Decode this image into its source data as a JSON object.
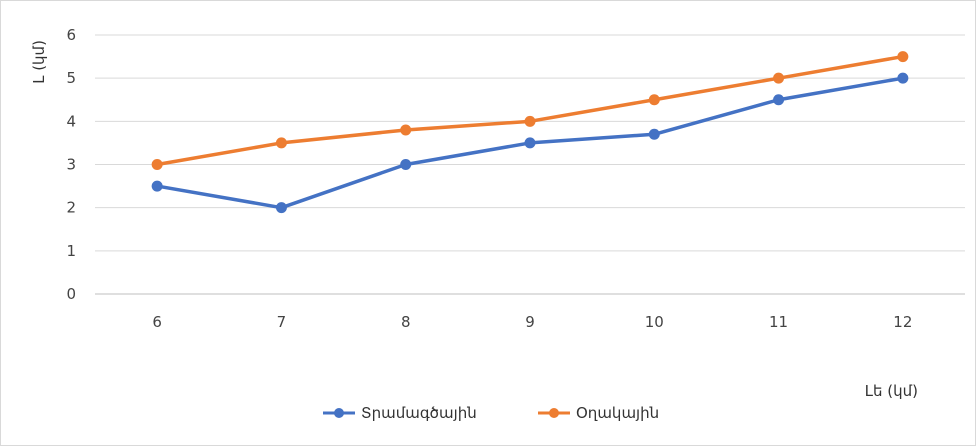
{
  "chart_data": {
    "type": "line",
    "title": "",
    "xlabel": "Lե (կմ)",
    "ylabel": "L (կմ)",
    "x": [
      6,
      7,
      8,
      9,
      10,
      11,
      12
    ],
    "ylim": [
      0,
      6
    ],
    "yticks": [
      "0",
      "1",
      "2",
      "3",
      "4",
      "5",
      "6"
    ],
    "xticks": [
      "6",
      "7",
      "8",
      "9",
      "10",
      "11",
      "12"
    ],
    "grid": true,
    "legend": "bottom",
    "series": [
      {
        "name": "Տրամագծային",
        "color": "#4472C4",
        "values": [
          2.5,
          2.0,
          3.0,
          3.5,
          3.7,
          4.5,
          5.0
        ]
      },
      {
        "name": "Օղակային",
        "color": "#ED7D31",
        "values": [
          3.0,
          3.5,
          3.8,
          4.0,
          4.5,
          5.0,
          5.5
        ]
      }
    ]
  }
}
